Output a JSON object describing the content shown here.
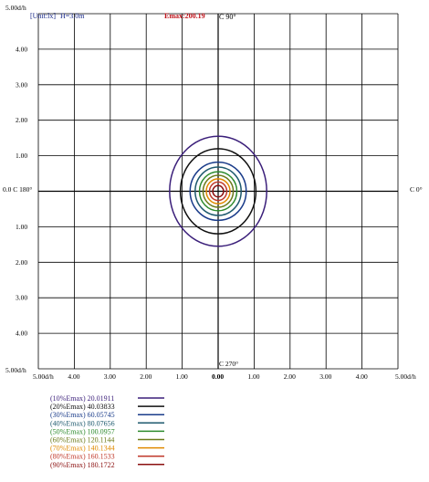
{
  "chart_data": {
    "type": "contour",
    "header": {
      "unit": "[Unit:lx]",
      "height": "H=3.0m",
      "emax": "Emax:200.19",
      "c90": "C 90°"
    },
    "direction_labels": {
      "c0": "C 0°",
      "c180": "0.0 C 180°",
      "c270": "C 270°"
    },
    "corner_labels": {
      "top_left": "5.00d/h",
      "bottom_left": "5.00d/h",
      "x_left": "5.00d/h",
      "x_right": "5.00d/h"
    },
    "y_ticks": [
      "4.00",
      "3.00",
      "2.00",
      "1.00",
      "1.00",
      "2.00",
      "3.00",
      "4.00"
    ],
    "x_ticks": [
      "4.00",
      "3.00",
      "2.00",
      "1.00",
      "0.00",
      "1.00",
      "2.00",
      "3.00",
      "4.00"
    ],
    "axis_range_dh": [
      -5,
      5
    ],
    "emax": 200.19,
    "unit": "lx",
    "contours": [
      {
        "label": "(10%Emax) 20.01911",
        "value": 20.01911,
        "color": "#3b1f7a",
        "rx": 1.35,
        "ry": 1.55
      },
      {
        "label": "(20%Emax) 40.03833",
        "value": 40.03833,
        "color": "#101010",
        "rx": 1.05,
        "ry": 1.2
      },
      {
        "label": "(30%Emax) 60.05745",
        "value": 60.05745,
        "color": "#1a3c8a",
        "rx": 0.78,
        "ry": 0.82
      },
      {
        "label": "(40%Emax) 80.07656",
        "value": 80.07656,
        "color": "#1e5a6e",
        "rx": 0.64,
        "ry": 0.68
      },
      {
        "label": "(50%Emax) 100.0957",
        "value": 100.0957,
        "color": "#2e8b2e",
        "rx": 0.52,
        "ry": 0.55
      },
      {
        "label": "(60%Emax) 120.1144",
        "value": 120.1144,
        "color": "#6b7a1a",
        "rx": 0.42,
        "ry": 0.45
      },
      {
        "label": "(70%Emax) 140.1344",
        "value": 140.1344,
        "color": "#e08a00",
        "rx": 0.33,
        "ry": 0.35
      },
      {
        "label": "(80%Emax) 160.1533",
        "value": 160.1533,
        "color": "#c0392b",
        "rx": 0.24,
        "ry": 0.26
      },
      {
        "label": "(90%Emax) 180.1722",
        "value": 180.1722,
        "color": "#8b1010",
        "rx": 0.15,
        "ry": 0.16
      }
    ],
    "grid": true
  }
}
